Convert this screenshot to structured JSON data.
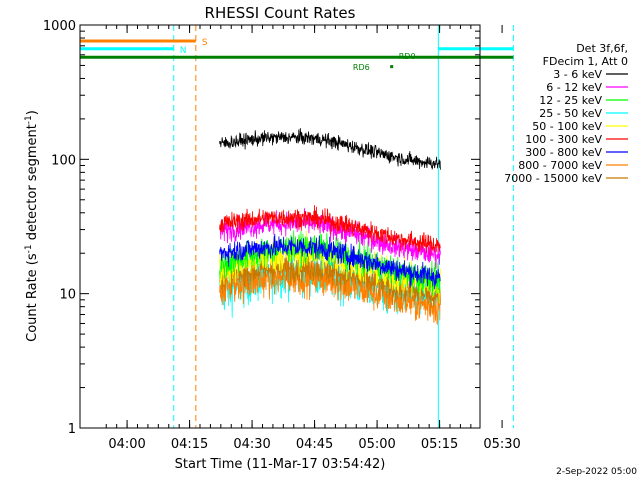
{
  "chart_data": {
    "type": "line",
    "title": "RHESSI Count Rates",
    "xlabel": "Start Time (11-Mar-17 03:54:42)",
    "ylabel_parts": [
      "Count Rate (s",
      "-1",
      " detector segment",
      "-1",
      ")"
    ],
    "yscale": "log",
    "ylim": [
      1,
      1000
    ],
    "xlim_min": [
      -6,
      90
    ],
    "x_unit": "minutes after 03:54:42",
    "yticks": [
      {
        "v": 1,
        "label": "1"
      },
      {
        "v": 10,
        "label": "10"
      },
      {
        "v": 100,
        "label": "100"
      },
      {
        "v": 1000,
        "label": "1000"
      }
    ],
    "xticks": [
      {
        "v": 5.3,
        "label": "04:00"
      },
      {
        "v": 20.3,
        "label": "04:15"
      },
      {
        "v": 35.3,
        "label": "04:30"
      },
      {
        "v": 50.3,
        "label": "04:45"
      },
      {
        "v": 65.3,
        "label": "05:00"
      },
      {
        "v": 80.3,
        "label": "05:15"
      },
      {
        "v": 95.3,
        "label": "05:30"
      }
    ],
    "legend_header": [
      "Det 3f,6f,",
      "FDecim 1, Att 0"
    ],
    "legend_position": "right",
    "series": [
      {
        "name": "3 - 6 keV",
        "color": "#000000",
        "t_start": 27.5,
        "t_end": 80.5,
        "level_start": 130,
        "level_mid": 130,
        "level_end": 105,
        "noise": 0.05
      },
      {
        "name": "6 - 12 keV",
        "color": "#ff00ff",
        "t_start": 27.5,
        "t_end": 80.5,
        "level_start": 29,
        "level_mid": 30,
        "level_end": 22,
        "noise": 0.08
      },
      {
        "name": "12 - 25 keV",
        "color": "#00ff00",
        "t_start": 27.5,
        "t_end": 80.5,
        "level_start": 16,
        "level_mid": 20,
        "level_end": 14,
        "noise": 0.1
      },
      {
        "name": "25 - 50 keV",
        "color": "#00ffff",
        "t_start": 27.5,
        "t_end": 80.5,
        "level_start": 10,
        "level_mid": 13,
        "level_end": 10,
        "noise": 0.16
      },
      {
        "name": "50 - 100 keV",
        "color": "#ffff00",
        "t_start": 27.5,
        "t_end": 80.5,
        "level_start": 15,
        "level_mid": 18,
        "level_end": 13,
        "noise": 0.12
      },
      {
        "name": "100 - 300 keV",
        "color": "#ff0000",
        "t_start": 27.5,
        "t_end": 80.5,
        "level_start": 33,
        "level_mid": 33,
        "level_end": 26,
        "noise": 0.07
      },
      {
        "name": "300 - 800 keV",
        "color": "#0000ff",
        "t_start": 27.5,
        "t_end": 80.5,
        "level_start": 20,
        "level_mid": 20,
        "level_end": 15,
        "noise": 0.08
      },
      {
        "name": "800 - 7000 keV",
        "color": "#ff8000",
        "t_start": 27.5,
        "t_end": 80.5,
        "level_start": 11,
        "level_mid": 12,
        "level_end": 9,
        "noise": 0.13
      },
      {
        "name": "7000 - 15000 keV",
        "color": "#c87800",
        "t_start": 27.5,
        "t_end": 80.5,
        "level_start": 13,
        "level_mid": 14,
        "level_end": 11,
        "noise": 0.1
      }
    ],
    "vertical_lines": [
      {
        "t": -6.0,
        "color": "#00ffff",
        "dash": false
      },
      {
        "t": 16.5,
        "color": "#00ffff",
        "dash": true
      },
      {
        "t": 21.8,
        "color": "#ff8000",
        "dash": true
      },
      {
        "t": 80.0,
        "color": "#00ffff",
        "dash": false
      },
      {
        "t": 98.0,
        "color": "#00ffff",
        "dash": true
      }
    ],
    "flag_bars": [
      {
        "label": "S",
        "color": "#ff8000",
        "t_start": -6.0,
        "t_end": 21.8,
        "level": 760
      },
      {
        "label": "N",
        "color": "#00ffff",
        "t_start": -6.0,
        "t_end": 16.5,
        "level": 665
      },
      {
        "label": "",
        "color": "#00ffff",
        "t_start": 80.0,
        "t_end": 98.0,
        "level": 665
      },
      {
        "label": "",
        "color": "#008000",
        "t_start": -6.0,
        "t_end": 98.0,
        "level": 575
      }
    ],
    "annotations": [
      {
        "text": "RD0",
        "color": "#008000",
        "t": 70.5,
        "level": 590
      },
      {
        "text": "RD6",
        "color": "#008000",
        "t": 59.5,
        "level": 485
      }
    ],
    "annotation_marker": {
      "t": 68.8,
      "level": 490,
      "color": "#008000"
    },
    "footer_date": "2-Sep-2022 05:00"
  }
}
